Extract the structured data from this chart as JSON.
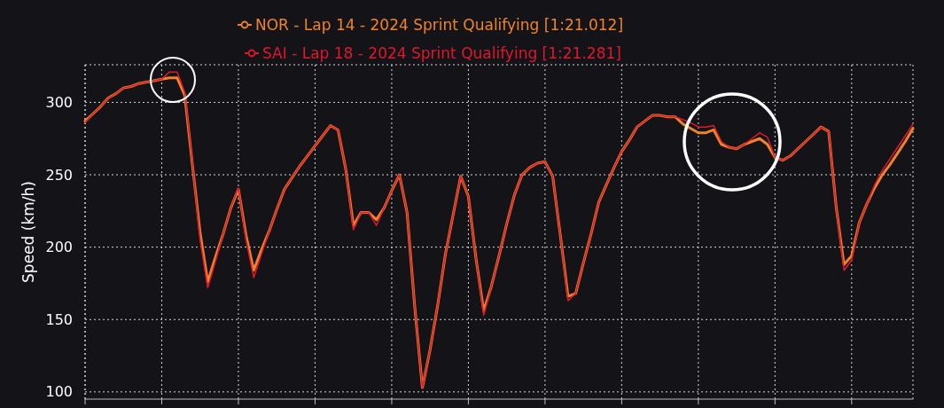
{
  "chart_data": {
    "type": "line",
    "ylabel": "Speed (km/h)",
    "categories": [
      null,
      null,
      null,
      null,
      null,
      null,
      null,
      null,
      null,
      null,
      null,
      null,
      null,
      null,
      null,
      null,
      null,
      null,
      null,
      null,
      null,
      null,
      null,
      null,
      null,
      null,
      null,
      null,
      null,
      null,
      null,
      null,
      null,
      null,
      null,
      null,
      null,
      null,
      null,
      null,
      null,
      null,
      null,
      null,
      null,
      null,
      null,
      null,
      null,
      null,
      null,
      null,
      null,
      null,
      null,
      null,
      null,
      null,
      null,
      null,
      null,
      null,
      null,
      null,
      null,
      null,
      null,
      null,
      null,
      null,
      null,
      null,
      null,
      null,
      null,
      null,
      null,
      null,
      null,
      null,
      null,
      null,
      null,
      null,
      null,
      null,
      null,
      null,
      null,
      null,
      null,
      null,
      null,
      null,
      null,
      null,
      null,
      null,
      null,
      null,
      null,
      null,
      null,
      null,
      null,
      null,
      null,
      null,
      null
    ],
    "series": [
      {
        "name": "NOR - Lap 14 - 2024 Sprint Qualifying [1:21.012]",
        "color": "#f0832a",
        "values": [
          287,
          292,
          297,
          303,
          306,
          310,
          311,
          313,
          314,
          315,
          316,
          317,
          317,
          305,
          257,
          210,
          176,
          193,
          209,
          227,
          240,
          208,
          184,
          198,
          211,
          226,
          240,
          248,
          256,
          263,
          270,
          277,
          284,
          281,
          254,
          215,
          224,
          224,
          219,
          227,
          239,
          250,
          224,
          159,
          103,
          129,
          160,
          195,
          222,
          249,
          235,
          192,
          156,
          173,
          194,
          216,
          236,
          250,
          255,
          258,
          259,
          249,
          208,
          166,
          168,
          189,
          209,
          231,
          243,
          255,
          266,
          274,
          283,
          287,
          291,
          291,
          290,
          290,
          285,
          282,
          279,
          279,
          281,
          271,
          269,
          268,
          271,
          273,
          275,
          271,
          262,
          260,
          263,
          268,
          273,
          278,
          283,
          280,
          227,
          188,
          194,
          217,
          230,
          241,
          250,
          257,
          265,
          273,
          282
        ]
      },
      {
        "name": "SAI - Lap 18 - 2024 Sprint Qualifying [1:21.281]",
        "color": "#e0182d",
        "values": [
          286,
          292,
          297,
          303,
          306,
          310,
          311,
          313,
          314,
          315,
          316,
          321,
          321,
          307,
          258,
          205,
          172,
          190,
          209,
          227,
          241,
          205,
          179,
          195,
          211,
          226,
          240,
          248,
          256,
          263,
          270,
          277,
          284,
          281,
          254,
          212,
          224,
          224,
          215,
          227,
          239,
          250,
          224,
          159,
          103,
          129,
          160,
          195,
          222,
          249,
          235,
          192,
          153,
          173,
          194,
          216,
          236,
          250,
          255,
          258,
          259,
          249,
          208,
          163,
          168,
          189,
          209,
          231,
          243,
          255,
          266,
          274,
          283,
          287,
          291,
          291,
          290,
          290,
          288,
          286,
          283,
          283,
          284,
          273,
          269,
          268,
          271,
          275,
          279,
          276,
          262,
          260,
          263,
          268,
          273,
          278,
          283,
          280,
          227,
          184,
          191,
          217,
          230,
          243,
          253,
          261,
          269,
          277,
          285
        ]
      }
    ],
    "ylim": [
      95,
      326
    ],
    "yticks": [
      100,
      150,
      200,
      250,
      300
    ],
    "grid": true,
    "legend": "top"
  }
}
